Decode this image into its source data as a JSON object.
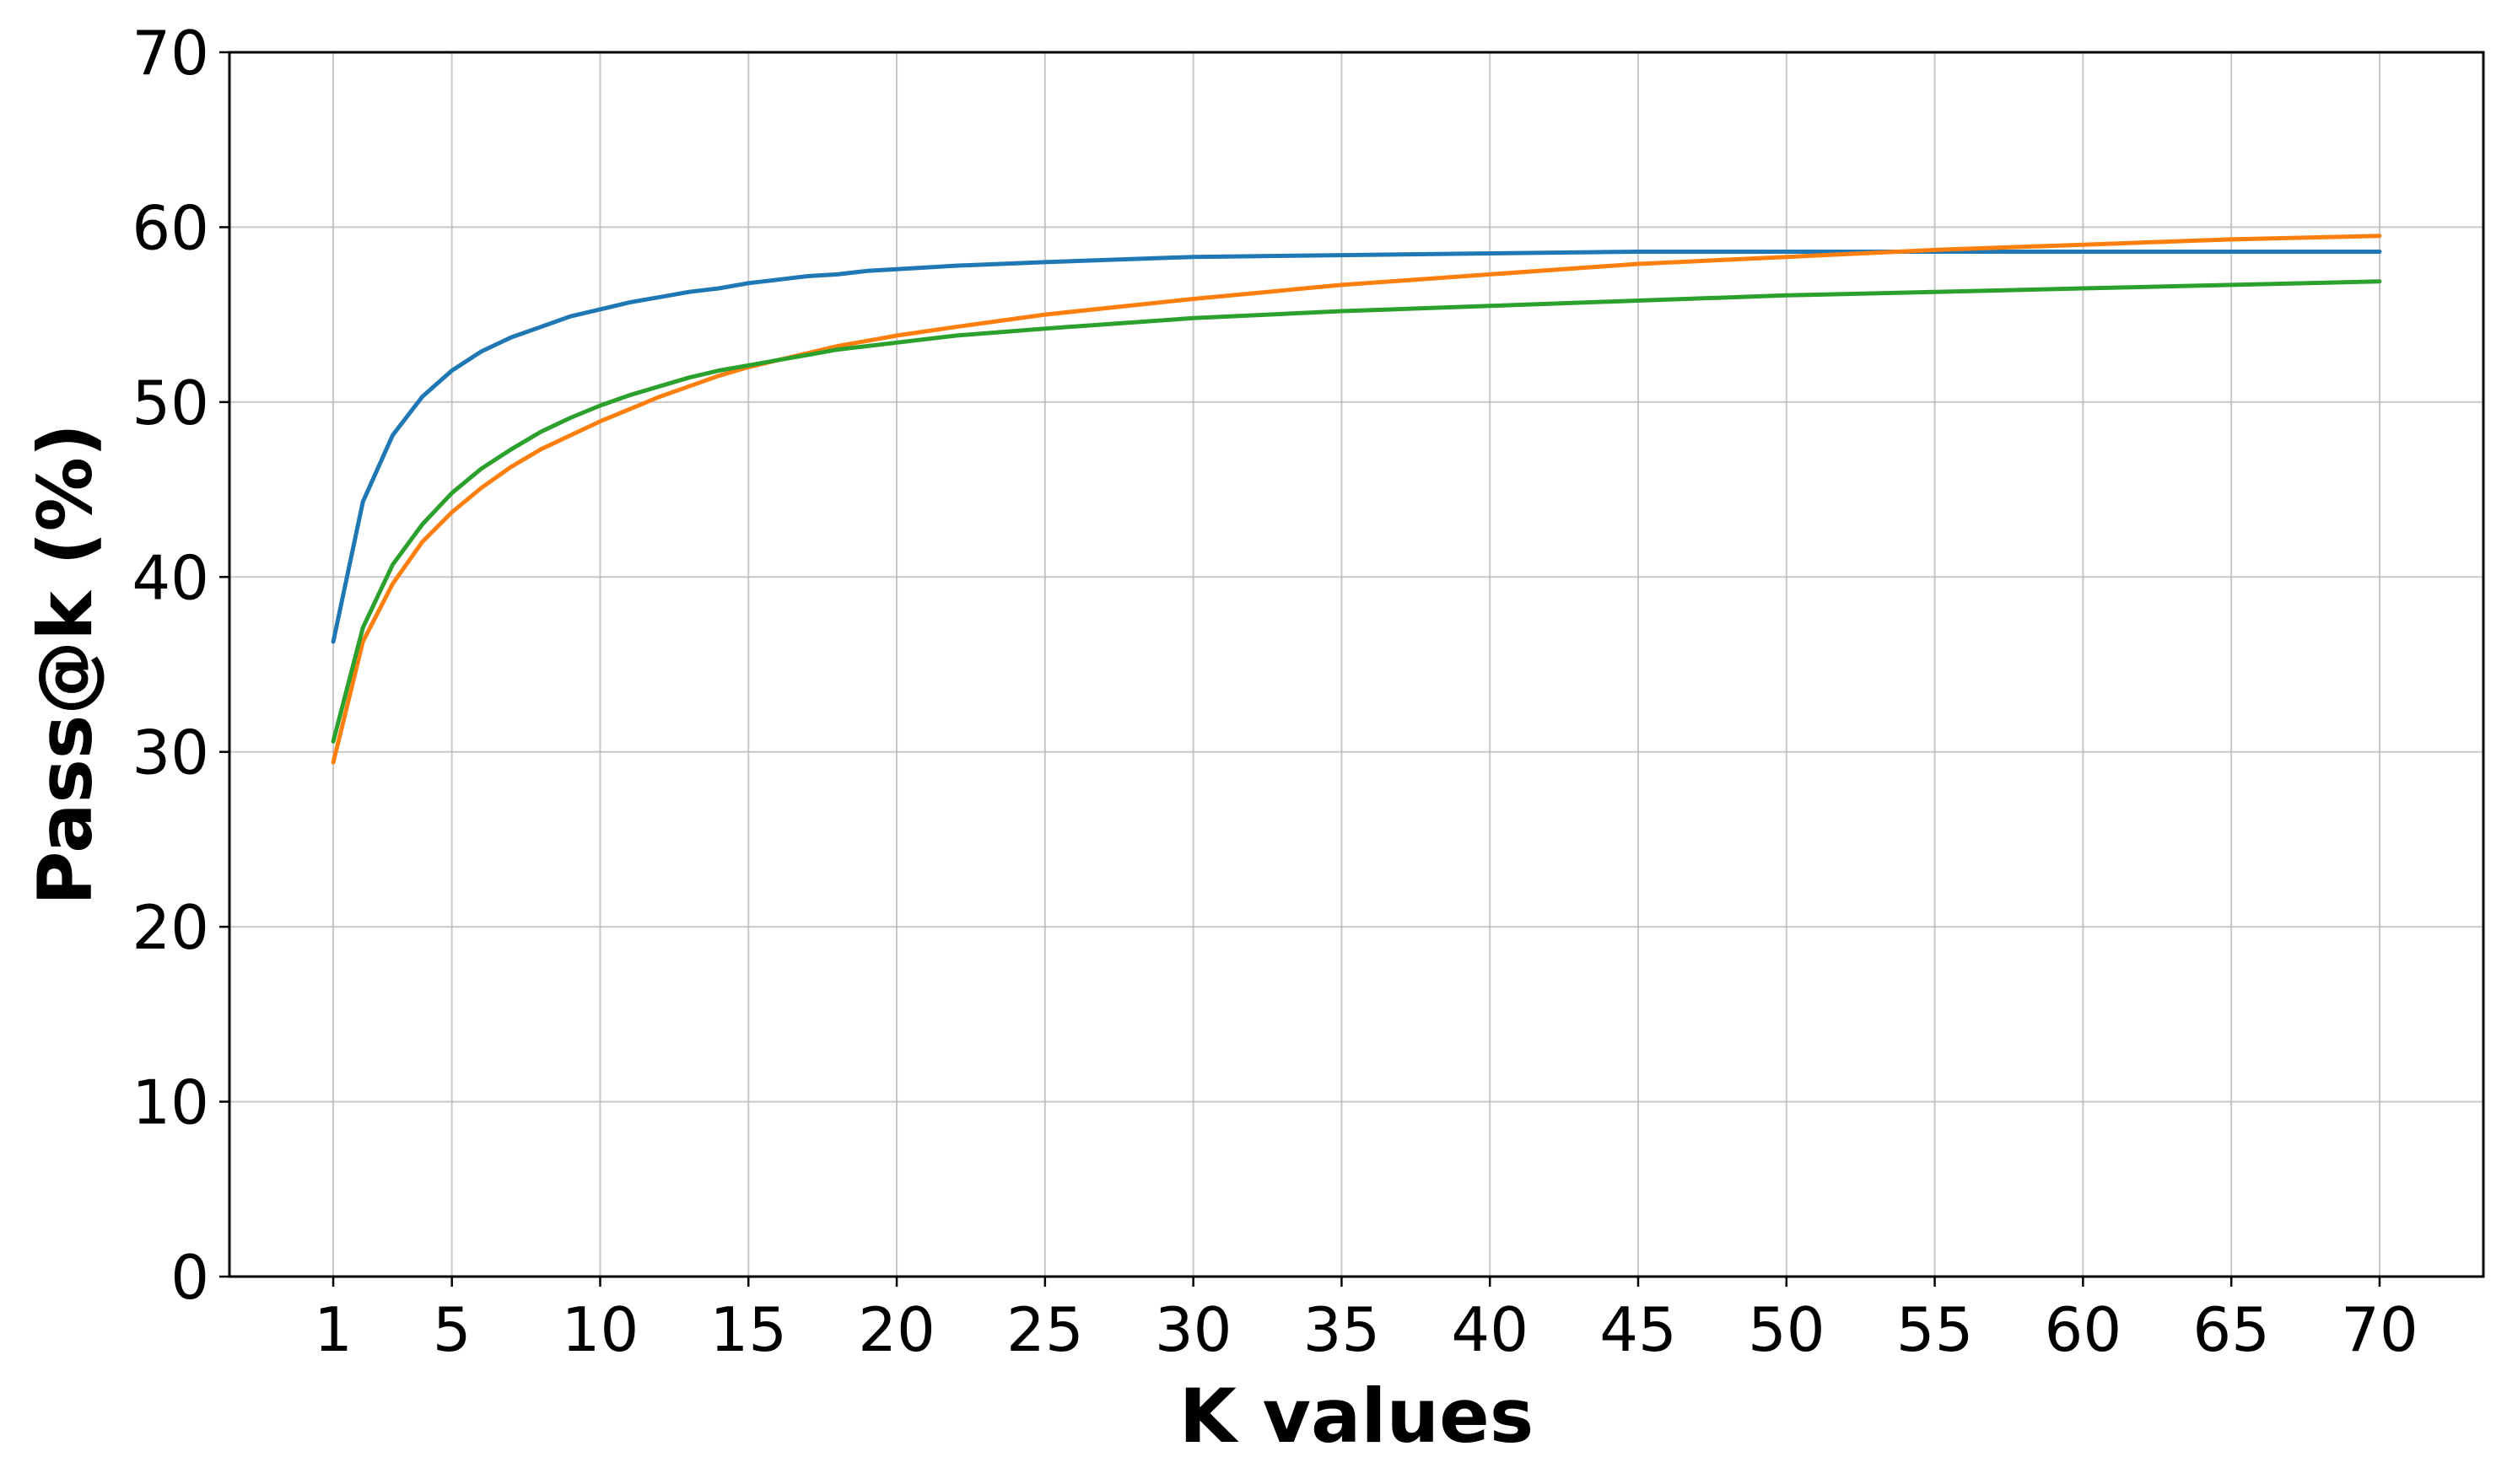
{
  "chart_data": {
    "type": "line",
    "xlabel": "K values",
    "ylabel": "Pass@k (%)",
    "xlim": [
      -2.5,
      73.5
    ],
    "ylim": [
      0,
      70
    ],
    "xticks": [
      1,
      5,
      10,
      15,
      20,
      25,
      30,
      35,
      40,
      45,
      50,
      55,
      60,
      65,
      70
    ],
    "yticks": [
      0,
      10,
      20,
      30,
      40,
      50,
      60,
      70
    ],
    "grid": true,
    "x": [
      1,
      2,
      3,
      4,
      5,
      6,
      7,
      8,
      9,
      10,
      11,
      12,
      13,
      14,
      15,
      16,
      17,
      18,
      19,
      20,
      22,
      25,
      30,
      35,
      40,
      45,
      50,
      55,
      60,
      65,
      70
    ],
    "series": [
      {
        "color": "#1f77b4",
        "values": [
          36.3,
          44.3,
          48.1,
          50.3,
          51.8,
          52.9,
          53.7,
          54.3,
          54.9,
          55.3,
          55.7,
          56.0,
          56.3,
          56.5,
          56.8,
          57.0,
          57.2,
          57.3,
          57.5,
          57.6,
          57.8,
          58.0,
          58.3,
          58.4,
          58.5,
          58.6,
          58.6,
          58.6,
          58.6,
          58.6,
          58.6
        ]
      },
      {
        "color": "#ff7f0e",
        "values": [
          29.4,
          36.3,
          39.6,
          42.0,
          43.7,
          45.1,
          46.3,
          47.3,
          48.1,
          48.9,
          49.6,
          50.3,
          50.9,
          51.5,
          52.0,
          52.4,
          52.8,
          53.2,
          53.5,
          53.8,
          54.3,
          55.0,
          55.9,
          56.7,
          57.3,
          57.9,
          58.3,
          58.7,
          59.0,
          59.3,
          59.5
        ]
      },
      {
        "color": "#2ca02c",
        "values": [
          30.6,
          37.1,
          40.7,
          43.0,
          44.8,
          46.2,
          47.3,
          48.3,
          49.1,
          49.8,
          50.4,
          50.9,
          51.4,
          51.8,
          52.1,
          52.4,
          52.7,
          53.0,
          53.2,
          53.4,
          53.8,
          54.2,
          54.8,
          55.2,
          55.5,
          55.8,
          56.1,
          56.3,
          56.5,
          56.7,
          56.9
        ]
      }
    ]
  }
}
